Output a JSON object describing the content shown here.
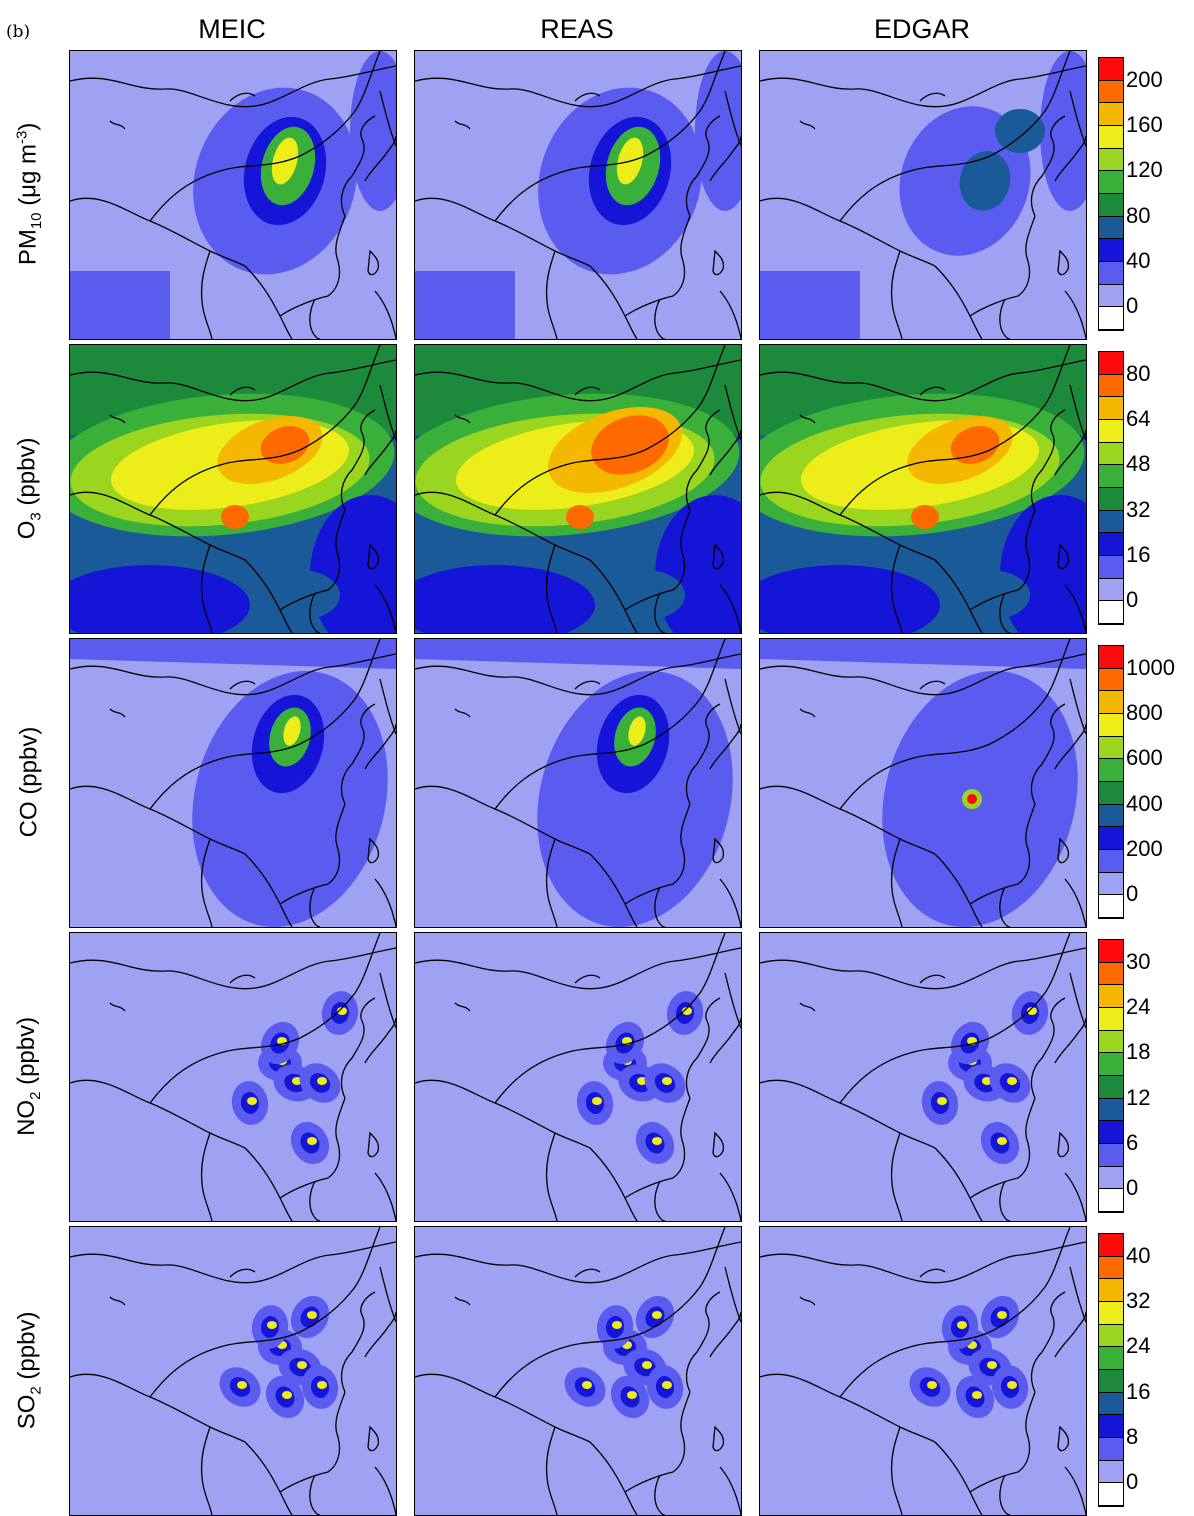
{
  "figure": {
    "panel_label": "(b)",
    "columns": [
      "MEIC",
      "REAS",
      "EDGAR"
    ],
    "rows": [
      {
        "species": "PM",
        "sub": "10",
        "unit_prefix": " (μg m",
        "unit_sup": "-3",
        "unit_suffix": ")",
        "ticks": [
          "200",
          "160",
          "120",
          "80",
          "40",
          "0"
        ],
        "pattern": "pm"
      },
      {
        "species": "O",
        "sub": "3",
        "unit_prefix": " (ppbv)",
        "unit_sup": "",
        "unit_suffix": "",
        "ticks": [
          "80",
          "64",
          "48",
          "32",
          "16",
          "0"
        ],
        "pattern": "o3"
      },
      {
        "species": "CO",
        "sub": "",
        "unit_prefix": " (ppbv)",
        "unit_sup": "",
        "unit_suffix": "",
        "ticks": [
          "1000",
          "800",
          "600",
          "400",
          "200",
          "0"
        ],
        "pattern": "co"
      },
      {
        "species": "NO",
        "sub": "2",
        "unit_prefix": " (ppbv)",
        "unit_sup": "",
        "unit_suffix": "",
        "ticks": [
          "30",
          "24",
          "18",
          "12",
          "6",
          "0"
        ],
        "pattern": "no2"
      },
      {
        "species": "SO",
        "sub": "2",
        "unit_prefix": " (ppbv)",
        "unit_sup": "",
        "unit_suffix": "",
        "ticks": [
          "40",
          "32",
          "24",
          "16",
          "8",
          "0"
        ],
        "pattern": "so2"
      }
    ],
    "colorbar_colors": [
      "#ffffff",
      "#9fa2f2",
      "#5a5cf0",
      "#1515d8",
      "#1a5a98",
      "#1c8a3a",
      "#3ab03a",
      "#9ad520",
      "#eded1a",
      "#f5b800",
      "#ff6a00",
      "#ff0a0a"
    ]
  }
}
